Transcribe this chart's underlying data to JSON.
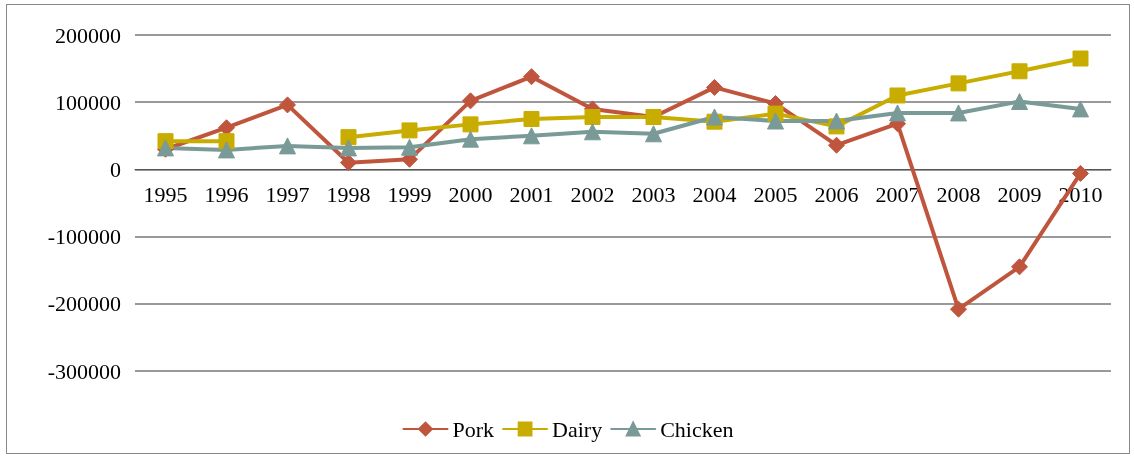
{
  "chart_data": {
    "type": "line",
    "categories": [
      "1995",
      "1996",
      "1997",
      "1998",
      "1999",
      "2000",
      "2001",
      "2002",
      "2003",
      "2004",
      "2005",
      "2006",
      "2007",
      "2008",
      "2009",
      "2010"
    ],
    "series": [
      {
        "name": "Pork",
        "color": "#c0553d",
        "marker": "diamond",
        "values": [
          30000,
          62000,
          96000,
          10000,
          15000,
          102000,
          138000,
          90000,
          78000,
          122000,
          98000,
          36000,
          68000,
          -208000,
          -145000,
          -6000
        ]
      },
      {
        "name": "Dairy",
        "color": "#c8ad00",
        "marker": "square",
        "values": [
          42000,
          42000,
          null,
          48000,
          58000,
          67000,
          75000,
          78000,
          78000,
          71000,
          83000,
          64000,
          110000,
          128000,
          146000,
          165000
        ]
      },
      {
        "name": "Chicken",
        "color": "#7a9a98",
        "marker": "triangle",
        "values": [
          32000,
          29000,
          35000,
          32000,
          33000,
          45000,
          50000,
          56000,
          53000,
          78000,
          72000,
          72000,
          84000,
          84000,
          101000,
          90000
        ]
      }
    ],
    "ylim": [
      -300000,
      200000
    ],
    "yticks": [
      -300000,
      -200000,
      -100000,
      0,
      100000,
      200000
    ],
    "grid": "y",
    "legend": "bottom"
  }
}
